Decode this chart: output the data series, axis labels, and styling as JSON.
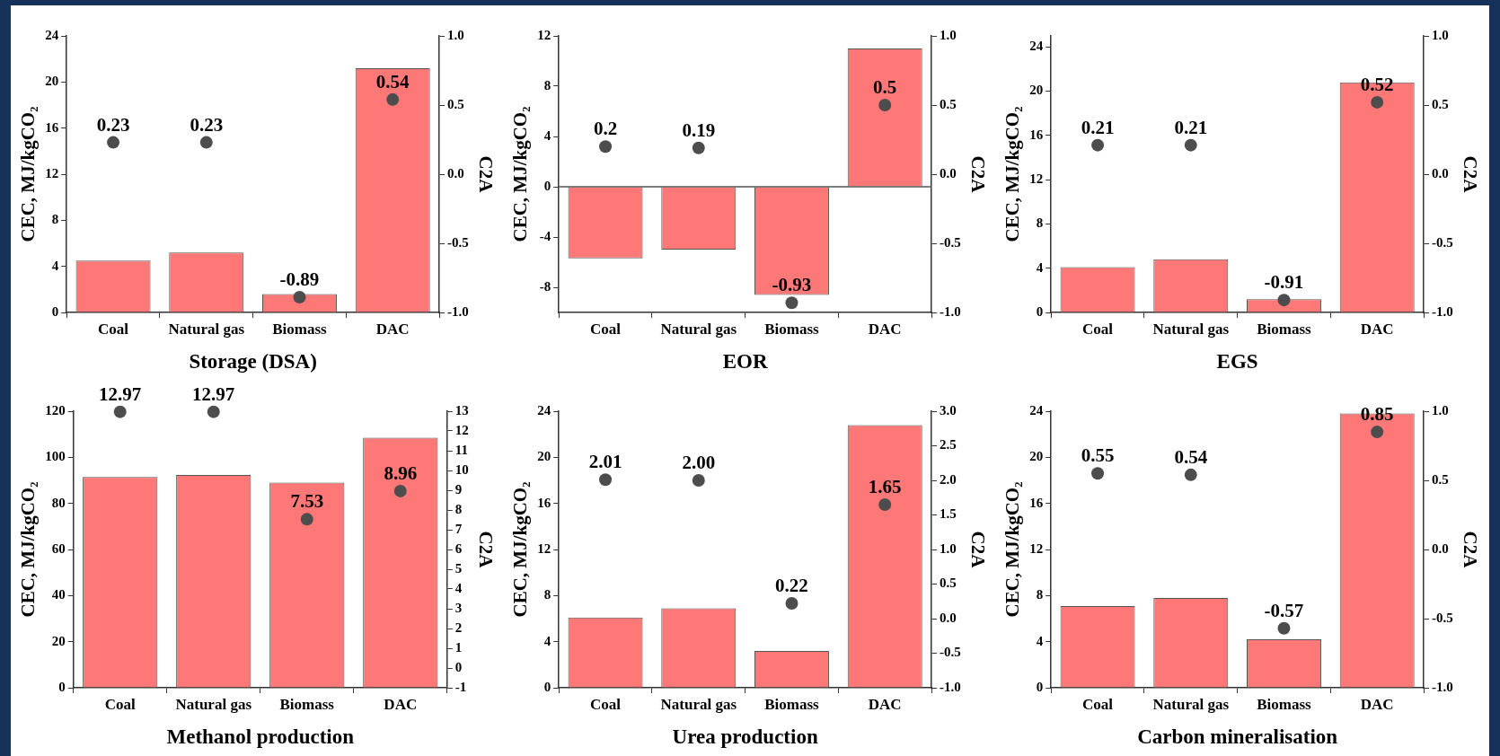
{
  "chart_data": [
    {
      "type": "bar",
      "xlabel": "Storage (DSA)",
      "ylabel": "CEC, MJ/kgCO₂",
      "y2label": "C2A",
      "categories": [
        "Coal",
        "Natural gas",
        "Biomass",
        "DAC"
      ],
      "ylim": [
        0,
        24
      ],
      "yticks": [
        0,
        4,
        8,
        12,
        16,
        20,
        24
      ],
      "y2lim": [
        -1,
        1
      ],
      "y2ticks": [
        {
          "value": -1,
          "label": "-1.0"
        },
        {
          "value": -0.5,
          "label": "-0.5"
        },
        {
          "value": 0,
          "label": "0.0"
        },
        {
          "value": 0.5,
          "label": "0.5"
        },
        {
          "value": 1,
          "label": "1.0"
        }
      ],
      "marker": "circle",
      "series": [
        {
          "color": "#ff7878",
          "values": [
            4.5,
            5.2,
            1.6,
            21.2
          ]
        },
        {
          "type": "scatter",
          "axis": "y2",
          "color": "#4d4d4d",
          "values": [
            0.23,
            0.23,
            -0.89,
            0.54
          ],
          "value_labels": [
            "0.23",
            "0.23",
            "-0.89",
            "0.54"
          ]
        }
      ]
    },
    {
      "type": "bar",
      "xlabel": "EOR",
      "ylabel": "CEC, MJ/kgCO₂",
      "y2label": "C2A",
      "categories": [
        "Coal",
        "Natural gas",
        "Biomass",
        "DAC"
      ],
      "ylim": [
        -10,
        12
      ],
      "yticks": [
        -8,
        -4,
        0,
        4,
        8,
        12
      ],
      "y2lim": [
        -1,
        1
      ],
      "y2ticks": [
        {
          "value": -1,
          "label": "-1.0"
        },
        {
          "value": -0.5,
          "label": "-0.5"
        },
        {
          "value": 0,
          "label": "0.0"
        },
        {
          "value": 0.5,
          "label": "0.5"
        },
        {
          "value": 1,
          "label": "1.0"
        }
      ],
      "marker": "circle",
      "ref_lines": [
        {
          "axis": "y",
          "value": 0
        }
      ],
      "series": [
        {
          "color": "#ff7878",
          "values": [
            -5.7,
            -5.0,
            -8.6,
            11.0
          ]
        },
        {
          "type": "scatter",
          "axis": "y2",
          "color": "#4d4d4d",
          "values": [
            0.2,
            0.19,
            -0.93,
            0.5
          ],
          "value_labels": [
            "0.2",
            "0.19",
            "-0.93",
            "0.5"
          ]
        }
      ]
    },
    {
      "type": "bar",
      "xlabel": "EGS",
      "ylabel": "CEC, MJ/kgCO₂",
      "y2label": "C2A",
      "categories": [
        "Coal",
        "Natural gas",
        "Biomass",
        "DAC"
      ],
      "ylim": [
        0,
        25
      ],
      "yticks": [
        0,
        4,
        8,
        12,
        16,
        20,
        24
      ],
      "y2lim": [
        -1,
        1
      ],
      "y2ticks": [
        {
          "value": -1,
          "label": "-1.0"
        },
        {
          "value": -0.5,
          "label": "-0.5"
        },
        {
          "value": 0,
          "label": "0.0"
        },
        {
          "value": 0.5,
          "label": "0.5"
        },
        {
          "value": 1,
          "label": "1.0"
        }
      ],
      "marker": "circle",
      "series": [
        {
          "color": "#ff7878",
          "values": [
            4.1,
            4.8,
            1.2,
            20.8
          ]
        },
        {
          "type": "scatter",
          "axis": "y2",
          "color": "#4d4d4d",
          "values": [
            0.21,
            0.21,
            -0.91,
            0.52
          ],
          "value_labels": [
            "0.21",
            "0.21",
            "-0.91",
            "0.52"
          ]
        }
      ]
    },
    {
      "type": "bar",
      "xlabel": "Methanol production",
      "ylabel": "CEC, MJ/kgCO₂",
      "y2label": "C2A",
      "categories": [
        "Coal",
        "Natural gas",
        "Biomass",
        "DAC"
      ],
      "ylim": [
        0,
        120
      ],
      "yticks": [
        0,
        20,
        40,
        60,
        80,
        100,
        120
      ],
      "y2lim": [
        -1,
        13
      ],
      "y2ticks": [
        -1,
        0,
        1,
        2,
        3,
        4,
        5,
        6,
        7,
        8,
        9,
        10,
        11,
        12,
        13
      ],
      "marker": "circle",
      "series": [
        {
          "color": "#ff7878",
          "values": [
            91.5,
            92.3,
            89,
            108.5
          ]
        },
        {
          "type": "scatter",
          "axis": "y2",
          "color": "#4d4d4d",
          "values": [
            12.97,
            12.97,
            7.53,
            8.96
          ],
          "value_labels": [
            "12.97",
            "12.97",
            "7.53",
            "8.96"
          ]
        }
      ]
    },
    {
      "type": "bar",
      "xlabel": "Urea production",
      "ylabel": "CEC, MJ/kgCO₂",
      "y2label": "C2A",
      "categories": [
        "Coal",
        "Natural gas",
        "Biomass",
        "DAC"
      ],
      "ylim": [
        0,
        24
      ],
      "yticks": [
        0,
        4,
        8,
        12,
        16,
        20,
        24
      ],
      "y2lim": [
        -1,
        3
      ],
      "y2ticks": [
        {
          "value": -1,
          "label": "-1.0"
        },
        {
          "value": -0.5,
          "label": "-0.5"
        },
        {
          "value": 0,
          "label": "0.0"
        },
        {
          "value": 0.5,
          "label": "0.5"
        },
        {
          "value": 1,
          "label": "1.0"
        },
        {
          "value": 1.5,
          "label": "1.5"
        },
        {
          "value": 2,
          "label": "2.0"
        },
        {
          "value": 2.5,
          "label": "2.5"
        },
        {
          "value": 3,
          "label": "3.0"
        }
      ],
      "marker": "circle",
      "series": [
        {
          "color": "#ff7878",
          "values": [
            6.1,
            6.9,
            3.2,
            22.8
          ]
        },
        {
          "type": "scatter",
          "axis": "y2",
          "color": "#4d4d4d",
          "values": [
            2.01,
            2.0,
            0.22,
            1.65
          ],
          "value_labels": [
            "2.01",
            "2.00",
            "0.22",
            "1.65"
          ]
        }
      ]
    },
    {
      "type": "bar",
      "xlabel": "Carbon mineralisation",
      "ylabel": "CEC, MJ/kgCO₂",
      "y2label": "C2A",
      "categories": [
        "Coal",
        "Natural gas",
        "Biomass",
        "DAC"
      ],
      "ylim": [
        0,
        24
      ],
      "yticks": [
        0,
        4,
        8,
        12,
        16,
        20,
        24
      ],
      "y2lim": [
        -1,
        1
      ],
      "y2ticks": [
        {
          "value": -1,
          "label": "-1.0"
        },
        {
          "value": -0.5,
          "label": "-0.5"
        },
        {
          "value": 0,
          "label": "0.0"
        },
        {
          "value": 0.5,
          "label": "0.5"
        },
        {
          "value": 1,
          "label": "1.0"
        }
      ],
      "marker": "circle",
      "series": [
        {
          "color": "#ff7878",
          "values": [
            7.1,
            7.8,
            4.2,
            23.8
          ]
        },
        {
          "type": "scatter",
          "axis": "y2",
          "color": "#4d4d4d",
          "values": [
            0.55,
            0.54,
            -0.57,
            0.85
          ],
          "value_labels": [
            "0.55",
            "0.54",
            "-0.57",
            "0.85"
          ]
        }
      ]
    }
  ]
}
